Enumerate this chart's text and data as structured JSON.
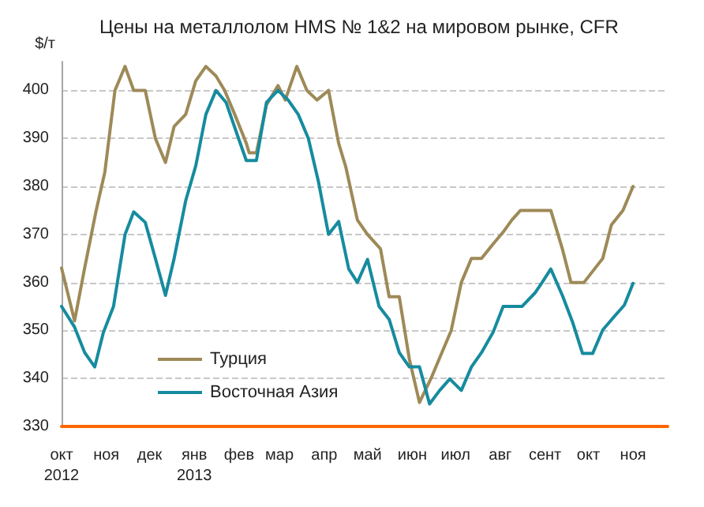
{
  "chart_data": {
    "type": "line",
    "title": "Цены на металлолом HMS № 1&2 на мировом рынке, CFR",
    "ylabel": "$/т",
    "xlim": [
      "2012-10-01",
      "2013-11-25"
    ],
    "ylim": [
      330,
      406
    ],
    "xticks": [
      {
        "value": "2012-10",
        "label": "окт\n2012"
      },
      {
        "value": "2012-11",
        "label": "ноя"
      },
      {
        "value": "2012-12",
        "label": "дек"
      },
      {
        "value": "2013-01",
        "label": "янв\n2013"
      },
      {
        "value": "2013-02",
        "label": "фев"
      },
      {
        "value": "2013-03",
        "label": "мар"
      },
      {
        "value": "2013-04",
        "label": "апр"
      },
      {
        "value": "2013-05",
        "label": "май"
      },
      {
        "value": "2013-06",
        "label": "июн"
      },
      {
        "value": "2013-07",
        "label": "июл"
      },
      {
        "value": "2013-08",
        "label": "авг"
      },
      {
        "value": "2013-09",
        "label": "сент"
      },
      {
        "value": "2013-10",
        "label": "окт"
      },
      {
        "value": "2013-11",
        "label": "ноя"
      }
    ],
    "yticks": [
      330,
      340,
      350,
      360,
      370,
      380,
      390,
      400
    ],
    "grid": "y",
    "legend": "bottom left",
    "line_style": "solid",
    "series": [
      {
        "name": "Турция",
        "color": "#9e8a58",
        "x": [
          "2012-10-01",
          "2012-10-10",
          "2012-10-17",
          "2012-10-25",
          "2012-10-31",
          "2012-11-07",
          "2012-11-14",
          "2012-11-20",
          "2012-11-28",
          "2012-12-05",
          "2012-12-12",
          "2012-12-18",
          "2012-12-26",
          "2013-01-02",
          "2013-01-09",
          "2013-01-16",
          "2013-01-22",
          "2013-01-29",
          "2013-02-06",
          "2013-02-08",
          "2013-02-13",
          "2013-02-20",
          "2013-02-28",
          "2013-03-05",
          "2013-03-13",
          "2013-03-20",
          "2013-03-27",
          "2013-04-04",
          "2013-04-11",
          "2013-04-16",
          "2013-04-24",
          "2013-05-01",
          "2013-05-10",
          "2013-05-16",
          "2013-05-23",
          "2013-05-30",
          "2013-06-06",
          "2013-06-14",
          "2013-06-21",
          "2013-06-28",
          "2013-07-05",
          "2013-07-12",
          "2013-07-19",
          "2013-07-27",
          "2013-08-03",
          "2013-08-09",
          "2013-08-15",
          "2013-09-05",
          "2013-09-13",
          "2013-09-19",
          "2013-09-28",
          "2013-10-11",
          "2013-10-17",
          "2013-10-25",
          "2013-11-01"
        ],
        "values": [
          363,
          352,
          363,
          375,
          383,
          400,
          405,
          400,
          400,
          390,
          385,
          392.5,
          395,
          402,
          405,
          403,
          400,
          395,
          389,
          387,
          387,
          397,
          401,
          398,
          405,
          400,
          398,
          400,
          389,
          384,
          373,
          370,
          367,
          357,
          357,
          344,
          335,
          340,
          345,
          350,
          360,
          365,
          365,
          368,
          370.5,
          373,
          375,
          375,
          367,
          360,
          360,
          365,
          372,
          375,
          380
        ]
      },
      {
        "name": "Восточная Азия",
        "color": "#168b9f",
        "x": [
          "2012-10-01",
          "2012-10-10",
          "2012-10-17",
          "2012-10-24",
          "2012-10-30",
          "2012-11-06",
          "2012-11-14",
          "2012-11-20",
          "2012-11-28",
          "2012-12-05",
          "2012-12-12",
          "2012-12-18",
          "2012-12-26",
          "2013-01-02",
          "2013-01-09",
          "2013-01-16",
          "2013-01-23",
          "2013-01-30",
          "2013-02-06",
          "2013-02-13",
          "2013-02-20",
          "2013-02-28",
          "2013-03-07",
          "2013-03-14",
          "2013-03-21",
          "2013-03-28",
          "2013-04-04",
          "2013-04-11",
          "2013-04-18",
          "2013-04-24",
          "2013-05-01",
          "2013-05-09",
          "2013-05-16",
          "2013-05-23",
          "2013-05-30",
          "2013-06-06",
          "2013-06-13",
          "2013-06-20",
          "2013-06-27",
          "2013-07-05",
          "2013-07-12",
          "2013-07-19",
          "2013-07-27",
          "2013-08-03",
          "2013-08-16",
          "2013-08-25",
          "2013-08-30",
          "2013-09-05",
          "2013-09-13",
          "2013-09-20",
          "2013-09-27",
          "2013-10-04",
          "2013-10-11",
          "2013-10-19",
          "2013-10-26",
          "2013-11-01"
        ],
        "values": [
          355,
          350.7,
          345.4,
          342.4,
          349.6,
          355,
          370,
          374.7,
          372.5,
          365,
          357.3,
          365,
          377,
          384.3,
          395,
          400,
          397.5,
          391.4,
          385.4,
          385.4,
          397.5,
          400,
          398,
          395,
          390,
          381,
          370,
          372.7,
          362.8,
          360,
          364.8,
          355,
          352.3,
          345.4,
          342.4,
          342.4,
          334.7,
          337.5,
          339.9,
          337.5,
          342.4,
          345.4,
          349.6,
          355,
          355,
          357.8,
          360,
          362.8,
          357.3,
          351.8,
          345.2,
          345.2,
          350.1,
          352.9,
          355.3,
          359.8
        ]
      }
    ]
  }
}
